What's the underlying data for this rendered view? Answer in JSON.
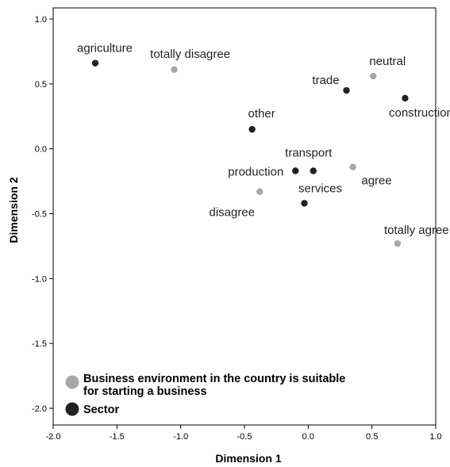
{
  "chart_data": {
    "type": "scatter",
    "xlabel": "Dimension 1",
    "ylabel": "Dimension 2",
    "xlim": [
      -2.0,
      1.0
    ],
    "ylim": [
      -2.15,
      1.1
    ],
    "x_ticks": [
      "-2.0",
      "-1.5",
      "-1.0",
      "-0.5",
      "0.0",
      "0.5",
      "1.0"
    ],
    "y_ticks": [
      "1.0",
      "0.5",
      "0.0",
      "-0.5",
      "-1.0",
      "-1.5",
      "-2.0"
    ],
    "grid": false,
    "legend_position": "bottom-left",
    "series": [
      {
        "name": "Business environment in the country is suitable for starting a business",
        "legend_lines": [
          "Business environment in the country is suitable",
          "for starting a business"
        ],
        "color": "#a6a6a6",
        "points": [
          {
            "label": "totally disagree",
            "x": -1.05,
            "y": 0.61
          },
          {
            "label": "neutral",
            "x": 0.51,
            "y": 0.56
          },
          {
            "label": "agree",
            "x": 0.35,
            "y": -0.14
          },
          {
            "label": "disagree",
            "x": -0.38,
            "y": -0.33
          },
          {
            "label": "totally agree",
            "x": 0.7,
            "y": -0.73
          }
        ]
      },
      {
        "name": "Sector",
        "legend_lines": [
          "Sector"
        ],
        "color": "#222222",
        "points": [
          {
            "label": "agriculture",
            "x": -1.67,
            "y": 0.66
          },
          {
            "label": "trade",
            "x": 0.3,
            "y": 0.45
          },
          {
            "label": "construction",
            "x": 0.76,
            "y": 0.39
          },
          {
            "label": "other",
            "x": -0.44,
            "y": 0.15
          },
          {
            "label": "transport",
            "x": 0.04,
            "y": -0.17
          },
          {
            "label": "production",
            "x": -0.1,
            "y": -0.17
          },
          {
            "label": "services",
            "x": -0.03,
            "y": -0.42
          }
        ]
      }
    ]
  }
}
